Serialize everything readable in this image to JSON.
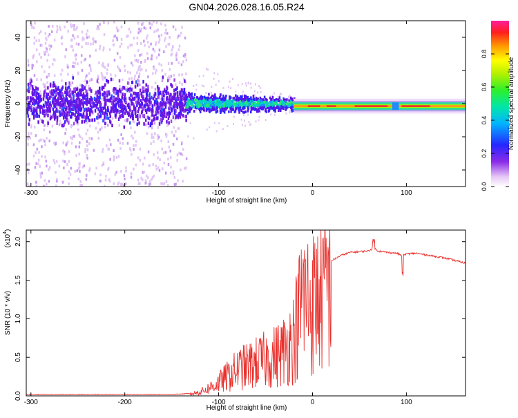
{
  "figure": {
    "title": "GN04.2026.028.16.05.R24"
  },
  "chart_data": [
    {
      "type": "heatmap",
      "xlabel": "Height of straight line (km)",
      "ylabel": "Frequency (Hz)",
      "xlim": [
        -305,
        163
      ],
      "ylim": [
        -50,
        50
      ],
      "xticks": [
        -300,
        -200,
        -100,
        0,
        100
      ],
      "yticks": [
        -40,
        -20,
        0,
        20,
        40
      ],
      "colorbar": {
        "label": "Normalized spectral amplitude",
        "ticks": [
          0.0,
          0.2,
          0.4,
          0.6,
          0.8
        ],
        "tick_labels": [
          "0.0",
          "0.2",
          "0.4",
          "0.6",
          "0.8"
        ],
        "range": [
          0,
          1
        ]
      },
      "description_points": {
        "noise_region_x": [
          -305,
          -135
        ],
        "noise_band_halfwidth_hz": 8,
        "scatter_extent_hz": 50,
        "transition_x": [
          -135,
          -20
        ],
        "transition_band_halfwidth_hz": 6,
        "coherent_line_x": [
          -20,
          163
        ],
        "coherent_line_freq_hz": -1.5,
        "coherent_line_amplitude": 0.9,
        "notch_x": [
          85,
          92
        ]
      }
    },
    {
      "type": "line",
      "xlabel": "Height of straight line (km)",
      "ylabel": "SNR (10 * v/v)",
      "y_multiplier_label": "(x10",
      "y_multiplier_exp": "4",
      "y_multiplier_close": ")",
      "xlim": [
        -305,
        163
      ],
      "ylim": [
        0,
        2.15
      ],
      "xticks": [
        -300,
        -200,
        -100,
        0,
        100
      ],
      "yticks": [
        0.0,
        0.5,
        1.0,
        1.5,
        2.0
      ],
      "ytick_labels": [
        "0.0",
        "0.5",
        "1.0",
        "1.5",
        "2.0"
      ],
      "series": [
        {
          "color": "#e8302c",
          "x": [
            -305,
            -250,
            -200,
            -150,
            -130,
            -120,
            -110,
            -100,
            -90,
            -80,
            -70,
            -60,
            -50,
            -40,
            -30,
            -20,
            -15,
            -10,
            -5,
            0,
            10,
            20,
            30,
            40,
            50,
            60,
            65,
            70,
            80,
            90,
            95,
            100,
            110,
            120,
            130,
            140,
            150,
            163
          ],
          "y": [
            0.02,
            0.02,
            0.02,
            0.02,
            0.03,
            0.06,
            0.12,
            0.2,
            0.3,
            0.4,
            0.45,
            0.5,
            0.55,
            0.6,
            0.7,
            0.9,
            1.2,
            1.55,
            1.45,
            1.4,
            1.6,
            1.75,
            1.82,
            1.86,
            1.87,
            1.88,
            1.92,
            1.88,
            1.86,
            1.85,
            1.82,
            1.84,
            1.85,
            1.83,
            1.81,
            1.79,
            1.76,
            1.72
          ]
        }
      ]
    }
  ]
}
